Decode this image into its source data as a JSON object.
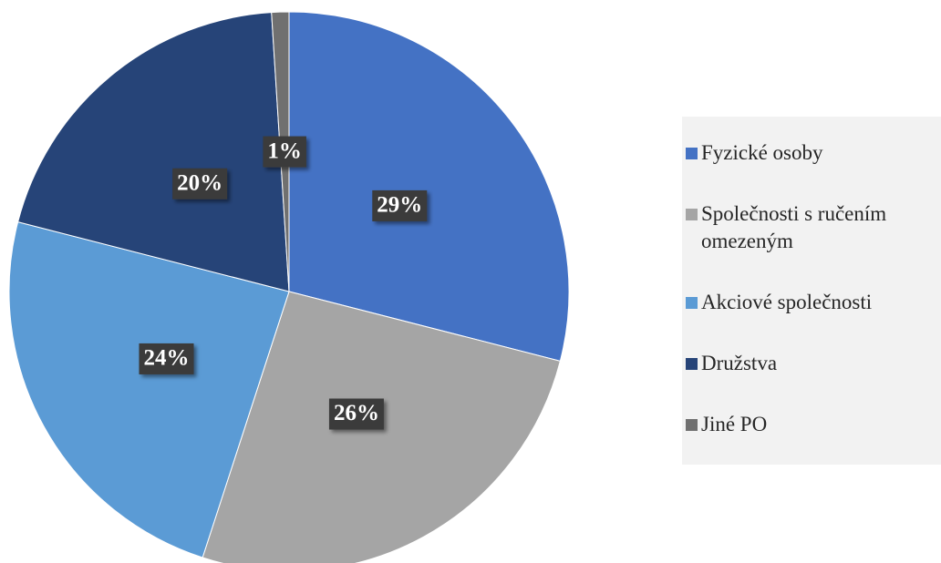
{
  "chart_data": {
    "type": "pie",
    "categories": [
      "Fyzické osoby",
      "Společnosti s ručením omezeným",
      "Akciové společnosti",
      "Družstva",
      "Jiné PO"
    ],
    "values": [
      29,
      26,
      24,
      20,
      1
    ],
    "value_labels": [
      "29%",
      "26%",
      "24%",
      "20%",
      "1%"
    ],
    "colors": [
      "#4472c4",
      "#a5a5a5",
      "#5b9bd5",
      "#264478",
      "#707070"
    ],
    "legend": "right"
  }
}
